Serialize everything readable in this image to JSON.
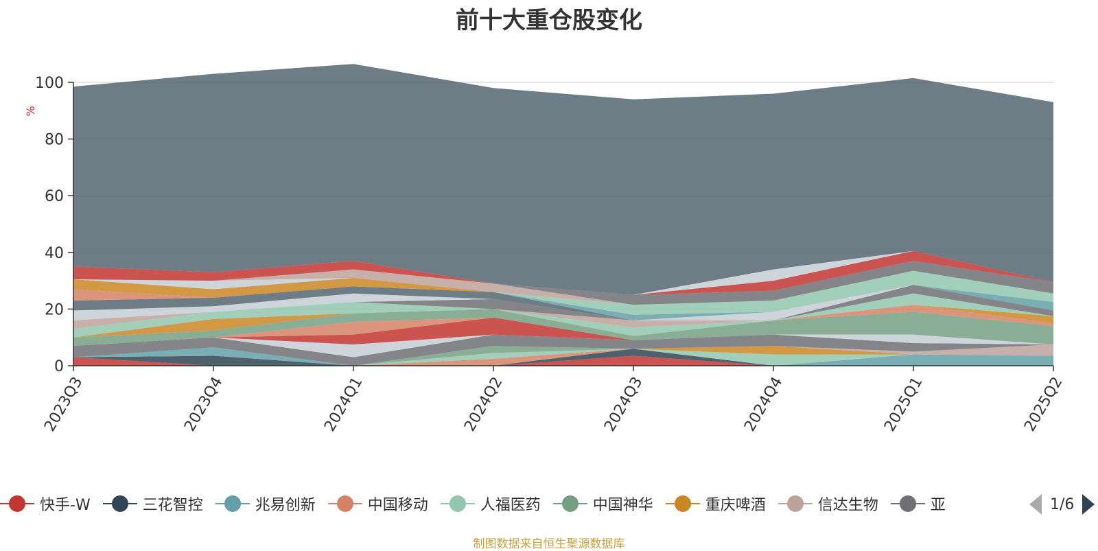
{
  "title": "前十大重仓股变化",
  "source": "制图数据来自恒生聚源数据库",
  "y_unit": "%",
  "legend_page": "1/6",
  "legend": [
    {
      "name": "快手-W",
      "color": "#c23531"
    },
    {
      "name": "三花智控",
      "color": "#2f4554"
    },
    {
      "name": "兆易创新",
      "color": "#61a0a8"
    },
    {
      "name": "中国移动",
      "color": "#d48265"
    },
    {
      "name": "人福医药",
      "color": "#91c7ae"
    },
    {
      "name": "中国神华",
      "color": "#749f83"
    },
    {
      "name": "重庆啤酒",
      "color": "#ca8622"
    },
    {
      "name": "信达生物",
      "color": "#bda29a"
    },
    {
      "name": "亚",
      "color": "#6e7074"
    }
  ],
  "chart_data": {
    "type": "area",
    "stacked": true,
    "categories": [
      "2023Q3",
      "2023Q4",
      "2024Q1",
      "2024Q2",
      "2024Q3",
      "2024Q4",
      "2025Q1",
      "2025Q2"
    ],
    "ylim": [
      0,
      100
    ],
    "yticks": [
      0,
      20,
      40,
      60,
      80,
      100
    ],
    "ylabel": "%",
    "grid": true,
    "legend_position": "bottom",
    "series": [
      {
        "name": "快手-W",
        "color": "#c23531",
        "values": [
          3,
          0,
          0,
          0,
          3.5,
          0,
          0,
          0
        ]
      },
      {
        "name": "三花智控",
        "color": "#2f4554",
        "values": [
          0,
          3.5,
          0,
          0,
          2.5,
          0,
          0,
          0
        ]
      },
      {
        "name": "兆易创新",
        "color": "#61a0a8",
        "values": [
          0,
          3,
          0,
          0,
          0,
          0,
          4,
          3.5
        ]
      },
      {
        "name": "中国移动",
        "color": "#d48265",
        "values": [
          0,
          0,
          0,
          2.5,
          0,
          0,
          0,
          0
        ]
      },
      {
        "name": "人福医药",
        "color": "#91c7ae",
        "values": [
          0,
          0,
          0,
          2,
          0,
          4,
          0,
          0
        ]
      },
      {
        "name": "中国神华",
        "color": "#749f83",
        "values": [
          0,
          0,
          0,
          2.5,
          0,
          0,
          0,
          0
        ]
      },
      {
        "name": "重庆啤酒",
        "color": "#ca8622",
        "values": [
          0,
          0,
          0,
          0,
          0,
          3,
          0,
          0
        ]
      },
      {
        "name": "信达生物",
        "color": "#bda29a",
        "values": [
          0,
          0,
          0,
          0,
          0,
          0,
          1,
          4
        ]
      },
      {
        "name": "亚",
        "color": "#6e7074",
        "values": [
          4,
          3.5,
          3,
          4,
          3,
          4,
          3,
          0
        ]
      },
      {
        "color": "#546570",
        "values": [
          0,
          0,
          0,
          0,
          0,
          0,
          0,
          0
        ]
      },
      {
        "color": "#c4ccd3",
        "values": [
          0,
          0,
          4.5,
          0,
          0,
          0,
          3,
          0
        ]
      },
      {
        "color": "#c23531",
        "values": [
          0,
          0,
          3.5,
          6,
          0,
          0,
          0,
          0
        ]
      },
      {
        "color": "#d48265",
        "values": [
          0,
          0,
          4.5,
          0,
          0,
          0,
          0,
          0
        ]
      },
      {
        "color": "#749f83",
        "values": [
          3,
          2.5,
          3,
          3,
          1.5,
          5,
          8,
          6.5
        ]
      },
      {
        "color": "#d48265",
        "values": [
          0,
          0,
          0,
          0,
          0,
          0,
          2.5,
          1
        ]
      },
      {
        "color": "#ca8622",
        "values": [
          0,
          4,
          0,
          0,
          0,
          0,
          0,
          2.5
        ]
      },
      {
        "color": "#91c7ae",
        "values": [
          3,
          2.5,
          4,
          0,
          3,
          0,
          4,
          0
        ]
      },
      {
        "color": "#bda29a",
        "values": [
          3,
          0,
          0,
          0,
          2.5,
          0,
          0,
          0
        ]
      },
      {
        "color": "#6e7074",
        "values": [
          0,
          0,
          0,
          3.5,
          0,
          0,
          3,
          2
        ]
      },
      {
        "color": "#c4ccd3",
        "values": [
          3.5,
          2,
          3,
          0,
          0,
          3,
          0,
          0
        ]
      },
      {
        "color": "#546570",
        "values": [
          3.5,
          3,
          2.5,
          2.5,
          0,
          0,
          0,
          0
        ]
      },
      {
        "color": "#61a0a8",
        "values": [
          0,
          0,
          0,
          0,
          2,
          0,
          0,
          3
        ]
      },
      {
        "color": "#91c7ae",
        "values": [
          0,
          0,
          0,
          0,
          3.5,
          4,
          5,
          3
        ]
      },
      {
        "color": "#d48265",
        "values": [
          4,
          0,
          0,
          0,
          0,
          0,
          0,
          0
        ]
      },
      {
        "color": "#ca8622",
        "values": [
          3.5,
          3,
          3,
          0,
          0,
          0,
          0,
          0
        ]
      },
      {
        "color": "#c4ccd3",
        "values": [
          0,
          3,
          0,
          0,
          0,
          0,
          0,
          0
        ]
      },
      {
        "color": "#bda29a",
        "values": [
          0,
          0,
          3,
          3,
          0,
          0,
          0,
          0
        ]
      },
      {
        "color": "#6e7074",
        "values": [
          0,
          0,
          0,
          0,
          3.5,
          3.5,
          3.5,
          4
        ]
      },
      {
        "color": "#c23531",
        "values": [
          4.5,
          3,
          3,
          0,
          0,
          3.5,
          3.5,
          0
        ]
      },
      {
        "color": "#c4ccd3",
        "values": [
          0,
          0,
          0,
          0,
          0,
          4,
          0,
          0
        ]
      },
      {
        "color": "#546570",
        "values": [
          63.5,
          70,
          69.5,
          69,
          69,
          62,
          61,
          63.5
        ]
      }
    ]
  }
}
